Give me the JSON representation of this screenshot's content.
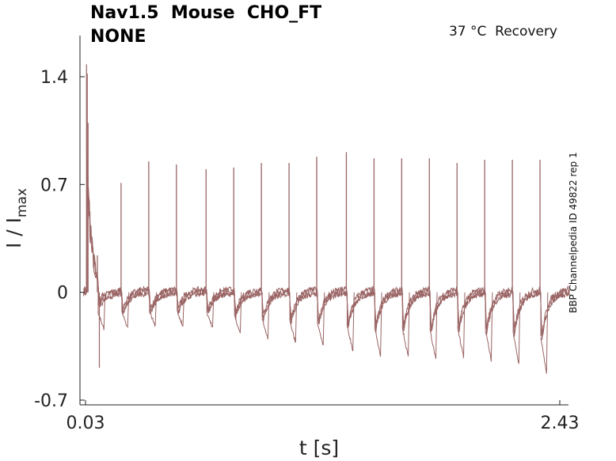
{
  "title_line1": "Nav1.5  Mouse  CHO_FT",
  "title_line2": "NONE",
  "condition": "37 °C  Recovery",
  "side_label": "BBP Channelpedia ID 49822 rep 1",
  "chart_data": {
    "type": "line",
    "xlabel": "t [s]",
    "ylabel_main": "I / I",
    "ylabel_sub": "max",
    "xlim": [
      0.03,
      2.43
    ],
    "ylim": [
      -0.7,
      1.4
    ],
    "xticks": [
      "0.03",
      "2.43"
    ],
    "yticks": [
      {
        "value": 1.4,
        "label": "1.4"
      },
      {
        "value": 0.7,
        "label": "0.7"
      },
      {
        "value": 0,
        "label": "0"
      },
      {
        "value": -0.7,
        "label": "-0.7"
      }
    ],
    "line_color": "#9a6464",
    "grid": false,
    "initial_transient": {
      "t": 0.035,
      "peak": 1.48,
      "dip": -0.49
    },
    "pulses": [
      {
        "t": 0.09,
        "peak": 0.24,
        "dip": -0.24
      },
      {
        "t": 0.21,
        "peak": 0.71,
        "dip": -0.23
      },
      {
        "t": 0.35,
        "peak": 0.85,
        "dip": -0.22
      },
      {
        "t": 0.49,
        "peak": 0.83,
        "dip": -0.22
      },
      {
        "t": 0.64,
        "peak": 0.8,
        "dip": -0.23
      },
      {
        "t": 0.78,
        "peak": 0.81,
        "dip": -0.27
      },
      {
        "t": 0.92,
        "peak": 0.84,
        "dip": -0.3
      },
      {
        "t": 1.06,
        "peak": 0.84,
        "dip": -0.33
      },
      {
        "t": 1.2,
        "peak": 0.88,
        "dip": -0.35
      },
      {
        "t": 1.35,
        "peak": 0.91,
        "dip": -0.38
      },
      {
        "t": 1.49,
        "peak": 0.87,
        "dip": -0.41
      },
      {
        "t": 1.63,
        "peak": 0.87,
        "dip": -0.42
      },
      {
        "t": 1.77,
        "peak": 0.87,
        "dip": -0.44
      },
      {
        "t": 1.91,
        "peak": 0.84,
        "dip": -0.42
      },
      {
        "t": 2.05,
        "peak": 0.86,
        "dip": -0.44
      },
      {
        "t": 2.19,
        "peak": 0.86,
        "dip": -0.47
      },
      {
        "t": 2.33,
        "peak": 0.86,
        "dip": -0.52
      }
    ]
  }
}
